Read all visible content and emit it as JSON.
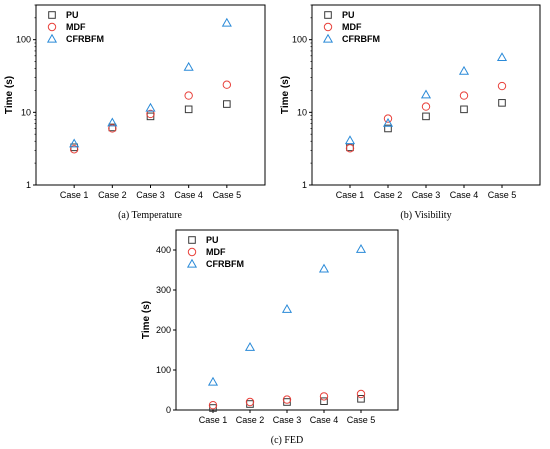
{
  "colors": {
    "PU": "#3a3a3a",
    "MDF": "#e8403a",
    "CFRBFM": "#2a8ad8"
  },
  "chart_data": [
    {
      "type": "scatter",
      "caption": "(a) Temperature",
      "ylabel": "Time (s)",
      "yscale": "log",
      "ylim": [
        1,
        300
      ],
      "yticks": [
        "1",
        "10",
        "100"
      ],
      "categories": [
        "Case 1",
        "Case 2",
        "Case 3",
        "Case 4",
        "Case 5"
      ],
      "legend_position": "top-left",
      "series": [
        {
          "name": "PU",
          "marker": "square",
          "values": [
            3.3,
            6.2,
            8.8,
            11,
            13
          ]
        },
        {
          "name": "MDF",
          "marker": "circle",
          "values": [
            3.1,
            6.0,
            9.5,
            17,
            24
          ]
        },
        {
          "name": "CFRBFM",
          "marker": "triangle",
          "values": [
            3.7,
            7.2,
            11.5,
            42,
            170
          ]
        }
      ]
    },
    {
      "type": "scatter",
      "caption": "(b) Visibility",
      "ylabel": "Time (s)",
      "yscale": "log",
      "ylim": [
        1,
        300
      ],
      "yticks": [
        "1",
        "10",
        "100"
      ],
      "categories": [
        "Case 1",
        "Case 2",
        "Case 3",
        "Case 4",
        "Case 5"
      ],
      "legend_position": "top-left",
      "series": [
        {
          "name": "PU",
          "marker": "square",
          "values": [
            3.3,
            6.0,
            8.8,
            11,
            13.5
          ]
        },
        {
          "name": "MDF",
          "marker": "circle",
          "values": [
            3.2,
            8.2,
            12,
            17,
            23
          ]
        },
        {
          "name": "CFRBFM",
          "marker": "triangle",
          "values": [
            4.1,
            7.1,
            17.5,
            37,
            57
          ]
        }
      ]
    },
    {
      "type": "scatter",
      "caption": "(c) FED",
      "ylabel": "Time (s)",
      "yscale": "linear",
      "ylim": [
        0,
        450
      ],
      "yticks": [
        "0",
        "100",
        "200",
        "300",
        "400"
      ],
      "categories": [
        "Case 1",
        "Case 2",
        "Case 3",
        "Case 4",
        "Case 5"
      ],
      "legend_position": "top-left",
      "series": [
        {
          "name": "PU",
          "marker": "square",
          "values": [
            5,
            15,
            20,
            22,
            28
          ]
        },
        {
          "name": "MDF",
          "marker": "circle",
          "values": [
            12,
            20,
            26,
            34,
            40
          ]
        },
        {
          "name": "CFRBFM",
          "marker": "triangle",
          "values": [
            70,
            157,
            252,
            353,
            402
          ]
        }
      ]
    }
  ]
}
